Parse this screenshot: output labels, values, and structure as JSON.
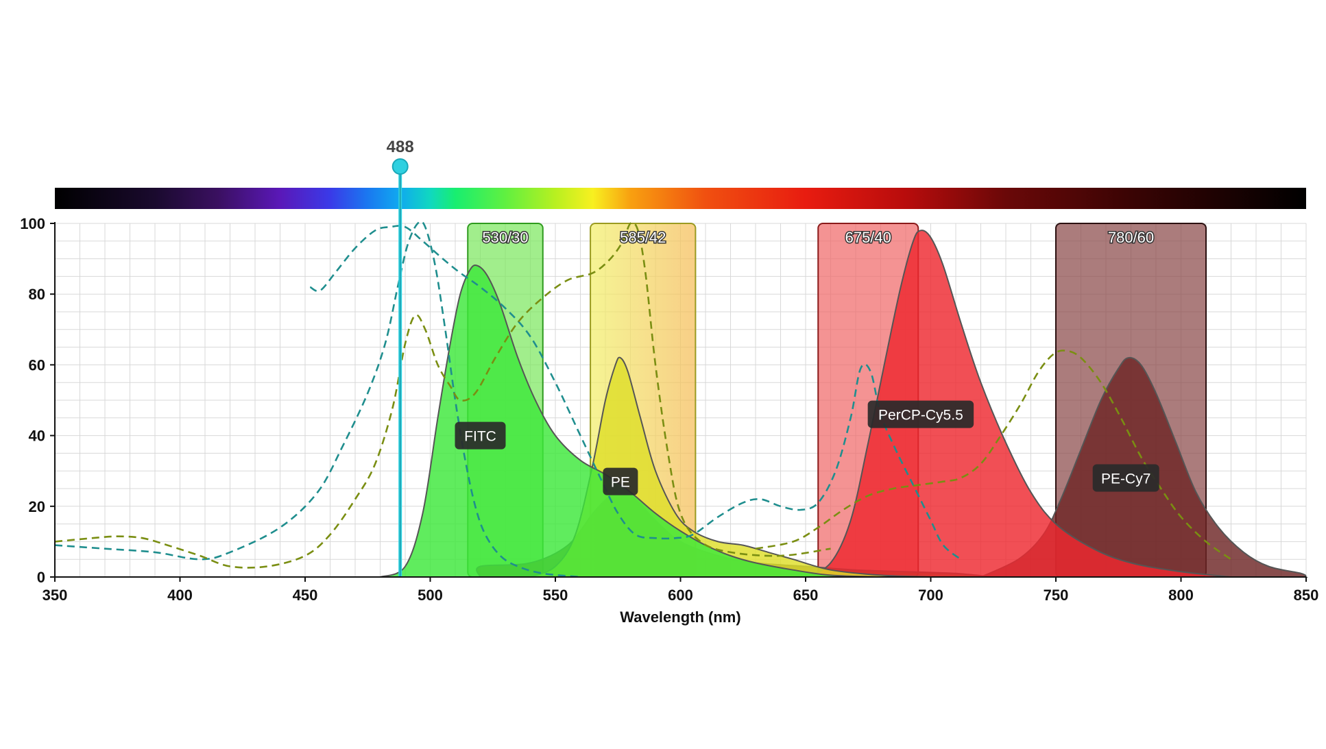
{
  "chart_data": {
    "type": "area",
    "title": "",
    "xlabel": "Wavelength (nm)",
    "ylabel": "",
    "xlim": [
      350,
      850
    ],
    "ylim": [
      0,
      100
    ],
    "x_ticks": [
      350,
      400,
      450,
      500,
      550,
      600,
      650,
      700,
      750,
      800,
      850
    ],
    "y_ticks": [
      0,
      20,
      40,
      60,
      80,
      100
    ],
    "grid": true,
    "laser": {
      "label": "488",
      "wavelength": 488,
      "color": "#2fd0e0"
    },
    "filters": [
      {
        "label": "530/30",
        "start": 515,
        "end": 545,
        "fill": "#7de860",
        "stroke": "#2e9a1e"
      },
      {
        "label": "585/42",
        "start": 564,
        "end": 606,
        "fill": "#f2ee6a",
        "fill2": "#f5c05a",
        "stroke": "#9a9a20"
      },
      {
        "label": "675/40",
        "start": 655,
        "end": 695,
        "fill": "#f06a6a",
        "stroke": "#8a1a1a"
      },
      {
        "label": "780/60",
        "start": 750,
        "end": 810,
        "fill": "#8a4a4a",
        "stroke": "#2a1010"
      }
    ],
    "series": [
      {
        "name": "FITC",
        "kind": "emission",
        "color": "#3de83a",
        "points": [
          [
            480,
            0
          ],
          [
            490,
            3
          ],
          [
            497,
            18
          ],
          [
            503,
            45
          ],
          [
            508,
            66
          ],
          [
            512,
            80
          ],
          [
            516,
            87
          ],
          [
            519,
            88
          ],
          [
            523,
            85
          ],
          [
            528,
            77
          ],
          [
            535,
            62
          ],
          [
            542,
            50
          ],
          [
            550,
            40
          ],
          [
            560,
            33
          ],
          [
            570,
            29
          ],
          [
            580,
            24
          ],
          [
            590,
            18
          ],
          [
            600,
            13
          ],
          [
            610,
            9
          ],
          [
            620,
            6
          ],
          [
            630,
            4
          ],
          [
            645,
            2
          ],
          [
            660,
            0.5
          ],
          [
            680,
            0
          ]
        ],
        "label_at": [
          520,
          40
        ]
      },
      {
        "name": "PE",
        "kind": "emission",
        "color": "#dede2a",
        "points": [
          [
            540,
            0
          ],
          [
            550,
            3
          ],
          [
            558,
            12
          ],
          [
            565,
            32
          ],
          [
            570,
            50
          ],
          [
            574,
            60
          ],
          [
            576,
            62
          ],
          [
            579,
            58
          ],
          [
            584,
            45
          ],
          [
            590,
            30
          ],
          [
            598,
            18
          ],
          [
            605,
            13
          ],
          [
            615,
            10
          ],
          [
            625,
            9
          ],
          [
            635,
            7
          ],
          [
            645,
            5
          ],
          [
            660,
            2
          ],
          [
            680,
            0.5
          ],
          [
            700,
            0
          ]
        ],
        "label_at": [
          576,
          27
        ]
      },
      {
        "name": "PerCP-Cy5.5",
        "kind": "emission",
        "color": "#ee2830",
        "points": [
          [
            650,
            0
          ],
          [
            660,
            4
          ],
          [
            668,
            16
          ],
          [
            675,
            38
          ],
          [
            682,
            62
          ],
          [
            688,
            82
          ],
          [
            693,
            95
          ],
          [
            696,
            98
          ],
          [
            700,
            96
          ],
          [
            705,
            88
          ],
          [
            712,
            72
          ],
          [
            720,
            55
          ],
          [
            730,
            38
          ],
          [
            740,
            24
          ],
          [
            750,
            15
          ],
          [
            765,
            8
          ],
          [
            780,
            4
          ],
          [
            800,
            1.5
          ],
          [
            820,
            0
          ]
        ],
        "label_at": [
          696,
          46
        ]
      },
      {
        "name": "PE-Cy7",
        "kind": "emission",
        "color": "#6e2626",
        "points": [
          [
            720,
            0
          ],
          [
            735,
            5
          ],
          [
            745,
            12
          ],
          [
            752,
            22
          ],
          [
            760,
            36
          ],
          [
            768,
            50
          ],
          [
            775,
            59
          ],
          [
            779,
            62
          ],
          [
            784,
            60
          ],
          [
            790,
            52
          ],
          [
            798,
            38
          ],
          [
            806,
            24
          ],
          [
            815,
            14
          ],
          [
            825,
            7
          ],
          [
            835,
            3
          ],
          [
            848,
            1
          ],
          [
            850,
            0
          ]
        ],
        "label_at": [
          778,
          28
        ]
      },
      {
        "name": "PE-tandem",
        "kind": "emission",
        "color": "#6b5522",
        "points": [
          [
            520,
            0
          ],
          [
            520,
            3
          ],
          [
            540,
            4
          ],
          [
            555,
            9
          ],
          [
            565,
            18
          ],
          [
            572,
            23
          ],
          [
            577,
            24
          ],
          [
            582,
            22
          ],
          [
            590,
            16
          ],
          [
            600,
            10
          ],
          [
            615,
            6
          ],
          [
            630,
            4
          ],
          [
            650,
            3
          ],
          [
            670,
            2
          ],
          [
            690,
            1.5
          ],
          [
            710,
            1
          ],
          [
            725,
            0
          ]
        ]
      },
      {
        "name": "FITC-excitation",
        "kind": "excitation",
        "color": "#1f8e8e",
        "points": [
          [
            350,
            9
          ],
          [
            370,
            8
          ],
          [
            390,
            7
          ],
          [
            408,
            5
          ],
          [
            420,
            7
          ],
          [
            440,
            14
          ],
          [
            455,
            24
          ],
          [
            465,
            37
          ],
          [
            475,
            52
          ],
          [
            482,
            66
          ],
          [
            487,
            82
          ],
          [
            491,
            94
          ],
          [
            495,
            100
          ],
          [
            498,
            99
          ],
          [
            502,
            88
          ],
          [
            506,
            70
          ],
          [
            510,
            50
          ],
          [
            514,
            33
          ],
          [
            518,
            20
          ],
          [
            522,
            12
          ],
          [
            528,
            6
          ],
          [
            535,
            3
          ],
          [
            545,
            1
          ],
          [
            560,
            0
          ]
        ]
      },
      {
        "name": "PerCP-excitation",
        "kind": "excitation",
        "color": "#1f8e8e",
        "points": [
          [
            452,
            82
          ],
          [
            456,
            81
          ],
          [
            462,
            86
          ],
          [
            470,
            93
          ],
          [
            478,
            98
          ],
          [
            484,
            99
          ],
          [
            490,
            99
          ],
          [
            497,
            95
          ],
          [
            505,
            90
          ],
          [
            512,
            86
          ],
          [
            520,
            82
          ],
          [
            530,
            76
          ],
          [
            540,
            68
          ],
          [
            550,
            55
          ],
          [
            560,
            40
          ],
          [
            568,
            28
          ],
          [
            575,
            18
          ],
          [
            582,
            12
          ],
          [
            590,
            11
          ],
          [
            598,
            11
          ],
          [
            605,
            12
          ],
          [
            615,
            17
          ],
          [
            625,
            21
          ],
          [
            632,
            22
          ],
          [
            640,
            20
          ],
          [
            648,
            19
          ],
          [
            655,
            21
          ],
          [
            662,
            30
          ],
          [
            668,
            45
          ],
          [
            672,
            59
          ],
          [
            676,
            58
          ],
          [
            680,
            46
          ],
          [
            686,
            36
          ],
          [
            693,
            26
          ],
          [
            700,
            16
          ],
          [
            705,
            9
          ],
          [
            712,
            5
          ]
        ]
      },
      {
        "name": "PE-excitation",
        "kind": "excitation",
        "color": "#7a8e12",
        "points": [
          [
            350,
            10
          ],
          [
            365,
            11
          ],
          [
            375,
            11.5
          ],
          [
            385,
            11
          ],
          [
            395,
            9
          ],
          [
            408,
            6
          ],
          [
            420,
            3
          ],
          [
            435,
            3
          ],
          [
            450,
            6
          ],
          [
            460,
            12
          ],
          [
            470,
            22
          ],
          [
            478,
            32
          ],
          [
            485,
            48
          ],
          [
            490,
            66
          ],
          [
            494,
            74
          ],
          [
            498,
            70
          ],
          [
            503,
            60
          ],
          [
            508,
            54
          ],
          [
            512,
            50
          ],
          [
            518,
            52
          ],
          [
            526,
            62
          ],
          [
            535,
            72
          ],
          [
            545,
            79
          ],
          [
            555,
            84
          ],
          [
            565,
            86
          ],
          [
            572,
            90
          ],
          [
            577,
            95
          ],
          [
            580,
            100
          ],
          [
            583,
            98
          ],
          [
            586,
            86
          ],
          [
            590,
            60
          ],
          [
            595,
            35
          ],
          [
            600,
            18
          ],
          [
            608,
            10
          ],
          [
            620,
            7
          ],
          [
            640,
            6
          ],
          [
            660,
            8
          ]
        ]
      },
      {
        "name": "PE-Cy7-excitation",
        "kind": "excitation",
        "color": "#7a8e12",
        "points": [
          [
            630,
            8
          ],
          [
            645,
            10
          ],
          [
            655,
            14
          ],
          [
            665,
            19
          ],
          [
            675,
            23
          ],
          [
            685,
            25
          ],
          [
            695,
            26
          ],
          [
            705,
            27
          ],
          [
            712,
            28
          ],
          [
            720,
            32
          ],
          [
            728,
            40
          ],
          [
            736,
            49
          ],
          [
            743,
            58
          ],
          [
            749,
            63
          ],
          [
            754,
            64
          ],
          [
            760,
            62
          ],
          [
            768,
            55
          ],
          [
            776,
            45
          ],
          [
            784,
            34
          ],
          [
            792,
            25
          ],
          [
            800,
            17
          ],
          [
            810,
            10
          ],
          [
            820,
            5
          ]
        ]
      }
    ]
  }
}
